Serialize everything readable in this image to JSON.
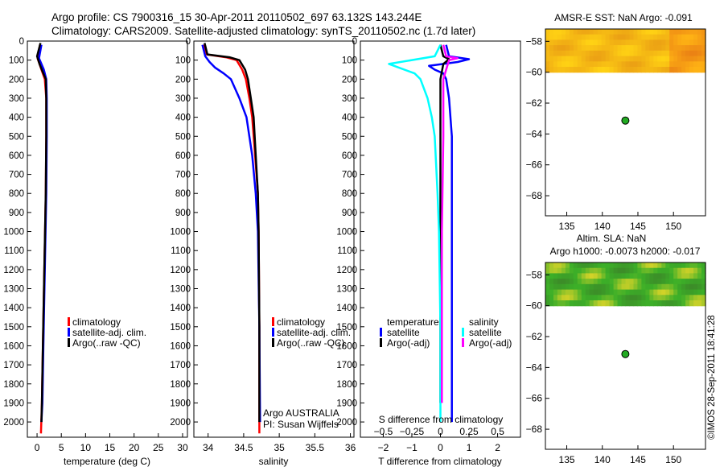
{
  "header": {
    "line1": "Argo profile: CS 7900316_15 30-Apr-2011 20110502_697 63.132S 143.244E",
    "line2": "Climatology: CARS2009. Satellite-adjusted climatology: synTS_20110502.nc (1.7d later)"
  },
  "colors": {
    "climatology": "#ff0000",
    "satellite": "#0000ff",
    "argo": "#000000",
    "satellite_salinity": "#00ffff",
    "argo_salinity": "#ff00ff",
    "marker": "#22aa22"
  },
  "chart_data": [
    {
      "id": "temperature",
      "type": "line",
      "xlabel": "temperature (deg C)",
      "ylabel": "",
      "xlim": [
        -2,
        31
      ],
      "ylim": [
        2080,
        0
      ],
      "xticks": [
        0,
        5,
        10,
        15,
        20,
        25,
        30
      ],
      "yticks": [
        0,
        100,
        200,
        300,
        400,
        500,
        600,
        700,
        800,
        900,
        1000,
        1100,
        1200,
        1300,
        1400,
        1500,
        1600,
        1700,
        1800,
        1900,
        2000
      ],
      "legend": {
        "placement": "lower-center",
        "items": [
          {
            "label": "climatology",
            "color": "#ff0000"
          },
          {
            "label": "satellite-adj. clim.",
            "color": "#0000ff"
          },
          {
            "label": "Argo(..raw -QC)",
            "color": "#000000"
          }
        ]
      },
      "series": [
        {
          "name": "climatology",
          "color": "#ff0000",
          "points": [
            [
              0.6,
              20
            ],
            [
              0.1,
              90
            ],
            [
              0.9,
              150
            ],
            [
              1.6,
              200
            ],
            [
              1.9,
              300
            ],
            [
              1.9,
              500
            ],
            [
              1.8,
              800
            ],
            [
              1.5,
              1200
            ],
            [
              1.2,
              1600
            ],
            [
              1.0,
              1900
            ],
            [
              0.8,
              2060
            ]
          ]
        },
        {
          "name": "satellite-adj. clim.",
          "color": "#0000ff",
          "points": [
            [
              0.9,
              20
            ],
            [
              0.4,
              90
            ],
            [
              1.4,
              150
            ],
            [
              1.9,
              200
            ],
            [
              2.0,
              300
            ],
            [
              2.0,
              500
            ],
            [
              1.9,
              800
            ],
            [
              1.6,
              1200
            ],
            [
              1.3,
              1600
            ],
            [
              1.1,
              1900
            ],
            [
              0.9,
              2000
            ]
          ]
        },
        {
          "name": "Argo(..raw -QC)",
          "color": "#000000",
          "points": [
            [
              0.7,
              10
            ],
            [
              0.0,
              80
            ],
            [
              0.5,
              120
            ],
            [
              1.3,
              170
            ],
            [
              1.8,
              200
            ],
            [
              1.9,
              300
            ],
            [
              1.9,
              500
            ],
            [
              1.8,
              800
            ],
            [
              1.5,
              1200
            ],
            [
              1.2,
              1600
            ],
            [
              1.0,
              1900
            ],
            [
              0.9,
              2000
            ]
          ]
        }
      ]
    },
    {
      "id": "salinity",
      "type": "line",
      "xlabel": "salinity",
      "ylabel": "",
      "xlim": [
        33.8,
        36.05
      ],
      "ylim": [
        2080,
        0
      ],
      "xticks": [
        34,
        34.5,
        35,
        35.5,
        36
      ],
      "yticks": [
        0,
        100,
        200,
        300,
        400,
        500,
        600,
        700,
        800,
        900,
        1000,
        1100,
        1200,
        1300,
        1400,
        1500,
        1600,
        1700,
        1800,
        1900,
        2000
      ],
      "legend": {
        "placement": "lower-right",
        "items": [
          {
            "label": "climatology",
            "color": "#ff0000"
          },
          {
            "label": "satellite-adj. clim.",
            "color": "#0000ff"
          },
          {
            "label": "Argo(..raw -QC)",
            "color": "#000000"
          }
        ]
      },
      "annotations": [
        "Argo AUSTRALIA",
        "PI: Susan Wijffels"
      ],
      "series": [
        {
          "name": "climatology",
          "color": "#ff0000",
          "points": [
            [
              33.93,
              20
            ],
            [
              33.98,
              70
            ],
            [
              34.25,
              85
            ],
            [
              34.4,
              100
            ],
            [
              34.48,
              150
            ],
            [
              34.53,
              200
            ],
            [
              34.58,
              300
            ],
            [
              34.62,
              400
            ],
            [
              34.66,
              600
            ],
            [
              34.7,
              800
            ],
            [
              34.71,
              1000
            ],
            [
              34.72,
              1500
            ],
            [
              34.72,
              2060
            ]
          ]
        },
        {
          "name": "satellite-adj. clim.",
          "color": "#0000ff",
          "points": [
            [
              33.92,
              20
            ],
            [
              33.96,
              80
            ],
            [
              34.02,
              110
            ],
            [
              34.1,
              140
            ],
            [
              34.22,
              170
            ],
            [
              34.32,
              200
            ],
            [
              34.44,
              300
            ],
            [
              34.54,
              400
            ],
            [
              34.62,
              600
            ],
            [
              34.67,
              800
            ],
            [
              34.7,
              1000
            ],
            [
              34.72,
              1500
            ],
            [
              34.73,
              2000
            ]
          ]
        },
        {
          "name": "Argo(..raw -QC)",
          "color": "#000000",
          "points": [
            [
              33.95,
              10
            ],
            [
              33.99,
              70
            ],
            [
              34.3,
              85
            ],
            [
              34.44,
              100
            ],
            [
              34.52,
              150
            ],
            [
              34.56,
              200
            ],
            [
              34.6,
              300
            ],
            [
              34.64,
              400
            ],
            [
              34.67,
              600
            ],
            [
              34.7,
              800
            ],
            [
              34.71,
              1000
            ],
            [
              34.72,
              1500
            ],
            [
              34.72,
              2000
            ]
          ]
        }
      ]
    },
    {
      "id": "difference",
      "type": "line",
      "xlabel": "T difference from climatology",
      "xlabel_top": "S difference from climatology",
      "xlim": [
        -2.8,
        2.8
      ],
      "ylim": [
        2080,
        0
      ],
      "xticks": [
        -2,
        -1,
        0,
        1,
        2
      ],
      "xticks_s": [
        -0.5,
        -0.25,
        0,
        0.25,
        0.5
      ],
      "s_scale": 4,
      "yticks": [
        0,
        100,
        200,
        300,
        400,
        500,
        600,
        700,
        800,
        900,
        1000,
        1100,
        1200,
        1300,
        1400,
        1500,
        1600,
        1700,
        1800,
        1900,
        2000
      ],
      "legend": {
        "placement": "lower-center",
        "headers": [
          "temperature",
          "salinity"
        ],
        "items": [
          {
            "label": "satellite",
            "color": "#0000ff"
          },
          {
            "label": "Argo(-adj)",
            "color": "#000000"
          },
          {
            "label": "satellite",
            "color": "#00ffff"
          },
          {
            "label": "Argo(-adj)",
            "color": "#ff00ff"
          }
        ]
      },
      "series": [
        {
          "name": "T satellite",
          "color": "#0000ff",
          "points": [
            [
              0.2,
              20
            ],
            [
              0.3,
              80
            ],
            [
              1.0,
              95
            ],
            [
              0.6,
              110
            ],
            [
              -0.4,
              130
            ],
            [
              -0.2,
              150
            ],
            [
              0.1,
              170
            ],
            [
              0.2,
              200
            ],
            [
              0.3,
              300
            ],
            [
              0.4,
              500
            ],
            [
              0.4,
              1000
            ],
            [
              0.4,
              1500
            ],
            [
              0.4,
              2000
            ]
          ]
        },
        {
          "name": "T Argo(-adj)",
          "color": "#000000",
          "points": [
            [
              0.0,
              20
            ],
            [
              0.1,
              80
            ],
            [
              0.3,
              95
            ],
            [
              0.1,
              120
            ],
            [
              0.0,
              200
            ],
            [
              0.0,
              500
            ],
            [
              0.0,
              1000
            ],
            [
              0.0,
              1500
            ],
            [
              0.0,
              1900
            ]
          ]
        },
        {
          "name": "S satellite",
          "color": "#00ffff",
          "points": [
            [
              0.0,
              20
            ],
            [
              -0.2,
              80
            ],
            [
              -1.8,
              120
            ],
            [
              -0.9,
              170
            ],
            [
              -0.7,
              200
            ],
            [
              -0.45,
              300
            ],
            [
              -0.3,
              400
            ],
            [
              -0.2,
              500
            ],
            [
              -0.1,
              800
            ],
            [
              -0.05,
              1000
            ],
            [
              0.0,
              1500
            ],
            [
              0.0,
              2000
            ]
          ]
        },
        {
          "name": "S Argo(-adj)",
          "color": "#ff00ff",
          "points": [
            [
              0.1,
              20
            ],
            [
              0.2,
              80
            ],
            [
              0.6,
              90
            ],
            [
              0.3,
              100
            ],
            [
              0.2,
              150
            ],
            [
              0.1,
              200
            ],
            [
              0.1,
              500
            ],
            [
              0.05,
              1000
            ],
            [
              0.05,
              1500
            ],
            [
              0.05,
              1900
            ]
          ]
        }
      ]
    },
    {
      "id": "sst_map",
      "type": "heatmap",
      "title": "AMSR-E SST: NaN Argo: -0.091",
      "xlim": [
        132,
        154.5
      ],
      "ylim": [
        -69.3,
        -57.2
      ],
      "xticks": [
        135,
        140,
        145,
        150
      ],
      "yticks": [
        -58,
        -60,
        -62,
        -64,
        -66,
        -68
      ],
      "data_lat_range": [
        -60,
        -57.2
      ],
      "palette": "yellow-orange",
      "argo_position": [
        143.244,
        -63.132
      ]
    },
    {
      "id": "sla_map",
      "type": "heatmap",
      "title": "Altim. SLA: NaN",
      "subtitle": "Argo h1000: -0.0073 h2000: -0.017",
      "xlim": [
        132,
        154.5
      ],
      "ylim": [
        -69.3,
        -57.2
      ],
      "xticks": [
        135,
        140,
        145,
        150
      ],
      "yticks": [
        -58,
        -60,
        -62,
        -64,
        -66,
        -68
      ],
      "data_lat_range": [
        -60,
        -57.2
      ],
      "palette": "green",
      "argo_position": [
        143.244,
        -63.132
      ]
    }
  ],
  "footer": {
    "credit": "©IMOS 28-Sep-2011 18:41:28"
  }
}
